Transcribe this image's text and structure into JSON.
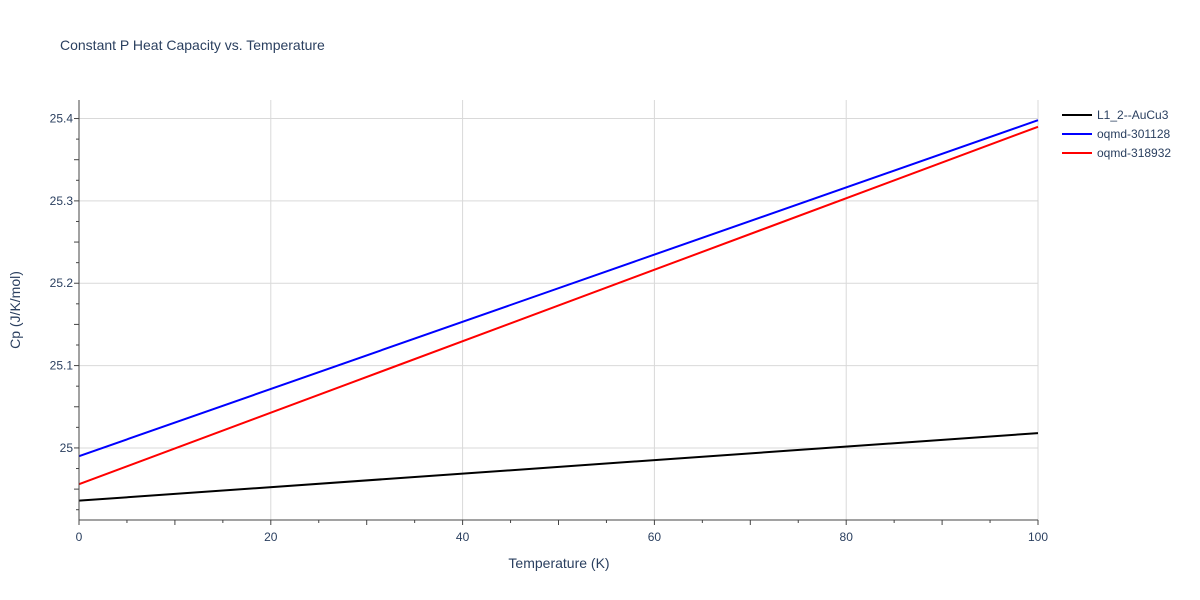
{
  "chart_data": {
    "type": "line",
    "title": "Constant P Heat Capacity vs. Temperature",
    "xlabel": "Temperature (K)",
    "ylabel": "Cp (J/K/mol)",
    "xlim": [
      0,
      100
    ],
    "ylim": [
      24.9125,
      25.4225
    ],
    "x_ticks": [
      0,
      20,
      40,
      60,
      80,
      100
    ],
    "y_ticks": [
      25,
      25.1,
      25.2,
      25.3,
      25.4
    ],
    "x_tick_labels": [
      "0",
      "20",
      "40",
      "60",
      "80",
      "100"
    ],
    "y_tick_labels": [
      "25",
      "25.1",
      "25.2",
      "25.3",
      "25.4"
    ],
    "grid": true,
    "legend_position": "top-right",
    "series": [
      {
        "name": "L1_2--AuCu3",
        "color": "#000000",
        "x": [
          0,
          100
        ],
        "y": [
          24.936,
          25.018
        ]
      },
      {
        "name": "oqmd-301128",
        "color": "#0000ff",
        "x": [
          0,
          100
        ],
        "y": [
          24.99,
          25.398
        ]
      },
      {
        "name": "oqmd-318932",
        "color": "#ff0000",
        "x": [
          0,
          100
        ],
        "y": [
          24.956,
          25.39
        ]
      }
    ]
  }
}
